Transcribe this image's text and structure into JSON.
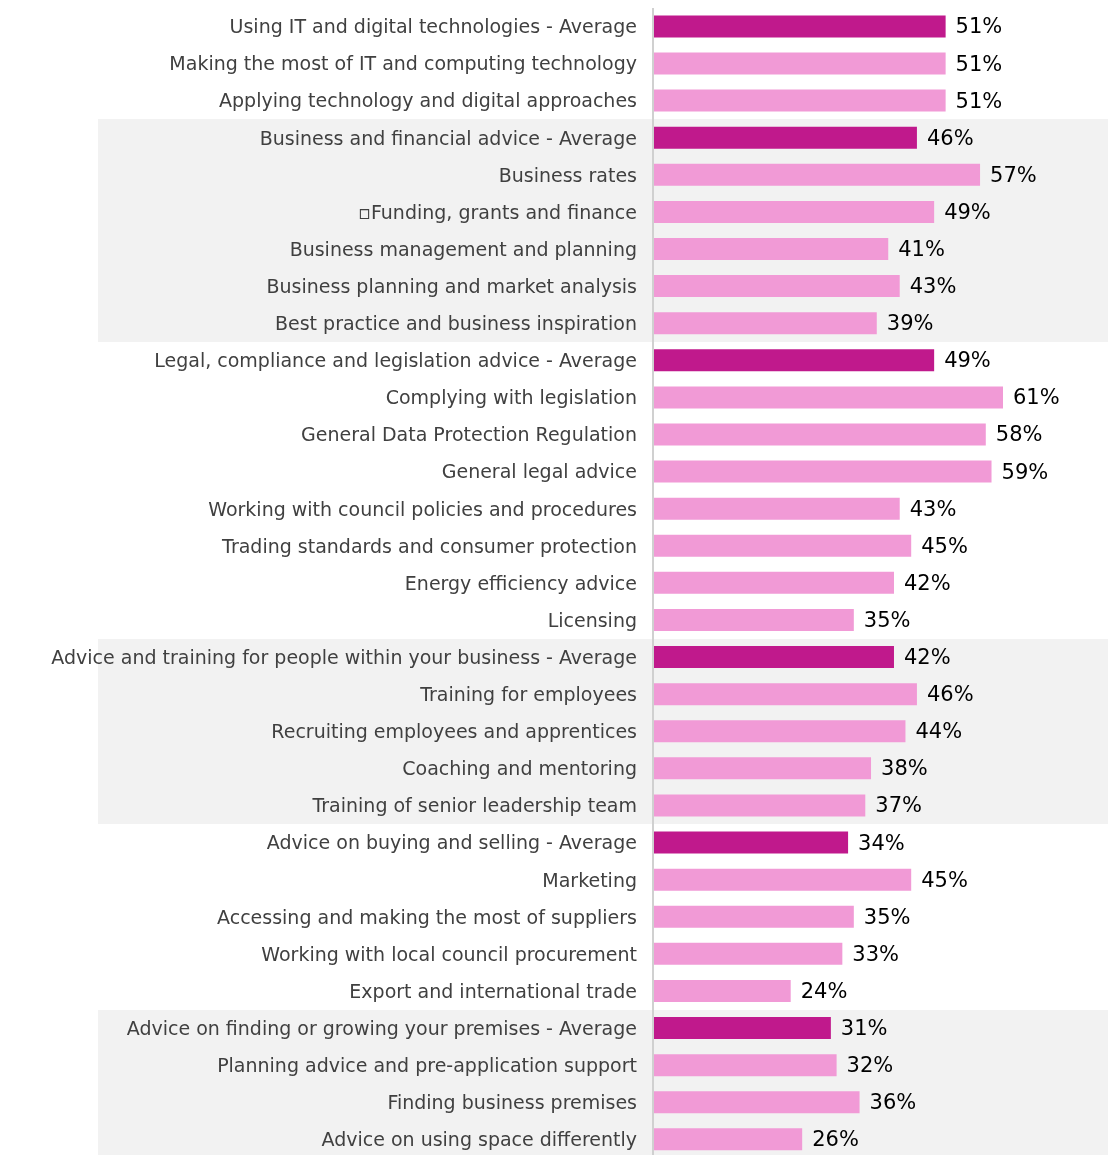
{
  "chart_data": {
    "type": "bar",
    "orientation": "horizontal",
    "categories": [
      "Using IT and digital technologies - Average",
      "Making the most of IT and computing technology",
      "Applying technology and digital approaches",
      "Business and financial advice - Average",
      "Business rates",
      "▫Funding, grants and finance",
      "Business management and planning",
      "Business planning and market analysis",
      "Best practice and business inspiration",
      "Legal, compliance and legislation advice - Average",
      "Complying with legislation",
      "General Data Protection Regulation",
      "General legal advice",
      "Working with council policies and procedures",
      "Trading standards and consumer protection",
      "Energy efficiency advice",
      "Licensing",
      "Advice and training for people within your business - Average",
      "Training for employees",
      "Recruiting employees and apprentices",
      "Coaching and mentoring",
      "Training of senior leadership team",
      "Advice on buying and selling - Average",
      "Marketing",
      "Accessing and making the most of suppliers",
      "Working with local council procurement",
      "Export and international trade",
      "Advice on finding or growing your premises - Average",
      "Planning advice and pre-application support",
      "Finding business premises",
      "Advice on using space differently"
    ],
    "values": [
      51,
      51,
      51,
      46,
      57,
      49,
      41,
      43,
      39,
      49,
      61,
      58,
      59,
      43,
      45,
      42,
      35,
      42,
      46,
      44,
      38,
      37,
      34,
      45,
      35,
      33,
      24,
      31,
      32,
      36,
      26
    ],
    "value_labels": [
      "51%",
      "51%",
      "51%",
      "46%",
      "57%",
      "49%",
      "41%",
      "43%",
      "39%",
      "49%",
      "61%",
      "58%",
      "59%",
      "43%",
      "45%",
      "42%",
      "35%",
      "42%",
      "46%",
      "44%",
      "38%",
      "37%",
      "34%",
      "45%",
      "35%",
      "33%",
      "24%",
      "31%",
      "32%",
      "36%",
      "26%"
    ],
    "colors": [
      "#c0198c",
      "#f19ad6",
      "#f19ad6",
      "#c0198c",
      "#f19ad6",
      "#f19ad6",
      "#f19ad6",
      "#f19ad6",
      "#f19ad6",
      "#c0198c",
      "#f19ad6",
      "#f19ad6",
      "#f19ad6",
      "#f19ad6",
      "#f19ad6",
      "#f19ad6",
      "#f19ad6",
      "#c0198c",
      "#f19ad6",
      "#f19ad6",
      "#f19ad6",
      "#f19ad6",
      "#c0198c",
      "#f19ad6",
      "#f19ad6",
      "#f19ad6",
      "#f19ad6",
      "#c0198c",
      "#f19ad6",
      "#f19ad6",
      "#f19ad6"
    ],
    "bands": [
      {
        "axis": "y",
        "from": "Business and financial advice - Average",
        "to": "Best practice and business inspiration",
        "color": "#f2f2f2"
      },
      {
        "axis": "y",
        "from": "Advice and training for people within your business - Average",
        "to": "Training of senior leadership team",
        "color": "#f2f2f2"
      },
      {
        "axis": "y",
        "from": "Advice on finding or growing your premises - Average",
        "to": "Advice on using space differently",
        "color": "#f2f2f2"
      }
    ]
  }
}
